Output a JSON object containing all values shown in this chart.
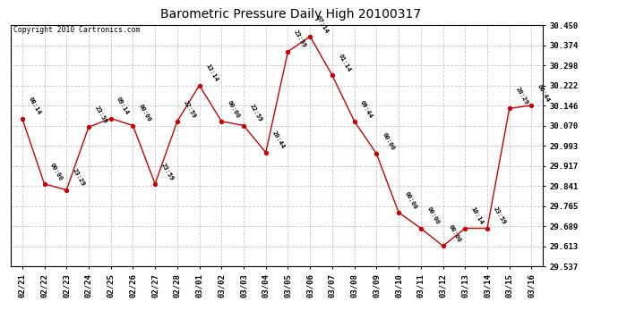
{
  "title": "Barometric Pressure Daily High 20100317",
  "copyright_text": "Copyright 2010 Cartronics.com",
  "background_color": "#ffffff",
  "plot_background": "#ffffff",
  "grid_color": "#c8c8c8",
  "line_color": "#cc0000",
  "marker_color": "#cc0000",
  "ylim": [
    29.537,
    30.45
  ],
  "yticks": [
    29.537,
    29.613,
    29.689,
    29.765,
    29.841,
    29.917,
    29.993,
    30.07,
    30.146,
    30.222,
    30.298,
    30.374,
    30.45
  ],
  "dates": [
    "02/21",
    "02/22",
    "02/23",
    "02/24",
    "02/25",
    "02/26",
    "02/27",
    "02/28",
    "03/01",
    "03/02",
    "03/03",
    "03/04",
    "03/05",
    "03/06",
    "03/07",
    "03/08",
    "03/09",
    "03/10",
    "03/11",
    "03/12",
    "03/13",
    "03/14",
    "03/15",
    "03/16"
  ],
  "values": [
    30.097,
    29.849,
    29.826,
    30.064,
    30.097,
    30.07,
    29.849,
    30.086,
    30.222,
    30.086,
    30.07,
    29.968,
    30.35,
    30.407,
    30.26,
    30.086,
    29.963,
    29.741,
    29.681,
    29.614,
    29.681,
    29.681,
    30.135,
    30.146
  ],
  "times": [
    "08:14",
    "00:00",
    "23:29",
    "23:59",
    "09:14",
    "00:00",
    "23:59",
    "22:59",
    "13:14",
    "00:00",
    "22:59",
    "20:44",
    "23:59",
    "07:14",
    "01:14",
    "09:44",
    "00:00",
    "00:00",
    "00:00",
    "00:00",
    "10:14",
    "23:59",
    "20:29",
    "06:44"
  ]
}
